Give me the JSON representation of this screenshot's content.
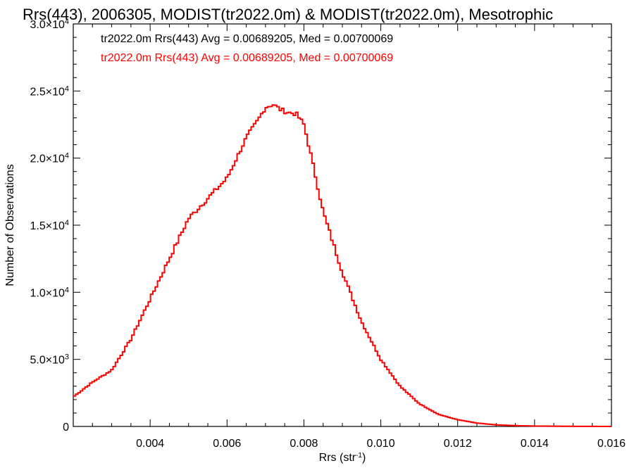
{
  "chart_data": {
    "type": "line",
    "step": true,
    "title": "Rrs(443), 2006305, MODIST(tr2022.0m) & MODIST(tr2022.0m), Mesotrophic",
    "xlabel": "Rrs (str",
    "xlabel_sup": "-1",
    "xlabel_end": ")",
    "ylabel": "Number of Observations",
    "xlim": [
      0.002,
      0.016
    ],
    "ylim": [
      0,
      30000
    ],
    "xticks": [
      {
        "value": 0.004,
        "label": "0.004"
      },
      {
        "value": 0.006,
        "label": "0.006"
      },
      {
        "value": 0.008,
        "label": "0.008"
      },
      {
        "value": 0.01,
        "label": "0.010"
      },
      {
        "value": 0.012,
        "label": "0.012"
      },
      {
        "value": 0.014,
        "label": "0.014"
      },
      {
        "value": 0.016,
        "label": "0.016"
      }
    ],
    "yticks": [
      {
        "value": 0,
        "mant": "0",
        "exp": ""
      },
      {
        "value": 5000,
        "mant": "5.0×10",
        "exp": "3"
      },
      {
        "value": 10000,
        "mant": "1.0×10",
        "exp": "4"
      },
      {
        "value": 15000,
        "mant": "1.5×10",
        "exp": "4"
      },
      {
        "value": 20000,
        "mant": "2.0×10",
        "exp": "4"
      },
      {
        "value": 25000,
        "mant": "2.5×10",
        "exp": "4"
      },
      {
        "value": 30000,
        "mant": "3.0×10",
        "exp": "4"
      }
    ],
    "legend": [
      {
        "text": "tr2022.0m Rrs(443) Avg = 0.00689205, Med = 0.00700069",
        "color": "#000000"
      },
      {
        "text": "tr2022.0m Rrs(443) Avg = 0.00689205, Med = 0.00700069",
        "color": "#ff0000"
      }
    ],
    "series": [
      {
        "color": "#ff0000",
        "x": [
          0.002,
          0.0025,
          0.003,
          0.0035,
          0.004,
          0.0045,
          0.005,
          0.0055,
          0.006,
          0.0065,
          0.0068,
          0.007,
          0.0072,
          0.0074,
          0.0076,
          0.0078,
          0.008,
          0.0082,
          0.0085,
          0.009,
          0.0095,
          0.01,
          0.0105,
          0.011,
          0.0115,
          0.012,
          0.0125,
          0.013,
          0.0135,
          0.014,
          0.015,
          0.016
        ],
        "y": [
          2200,
          3300,
          4200,
          6500,
          9500,
          12500,
          15500,
          17000,
          18500,
          21500,
          22800,
          23800,
          24000,
          23600,
          23400,
          23300,
          22500,
          20000,
          16000,
          11500,
          7800,
          5000,
          3000,
          1700,
          900,
          500,
          250,
          120,
          60,
          30,
          10,
          0
        ]
      }
    ]
  }
}
